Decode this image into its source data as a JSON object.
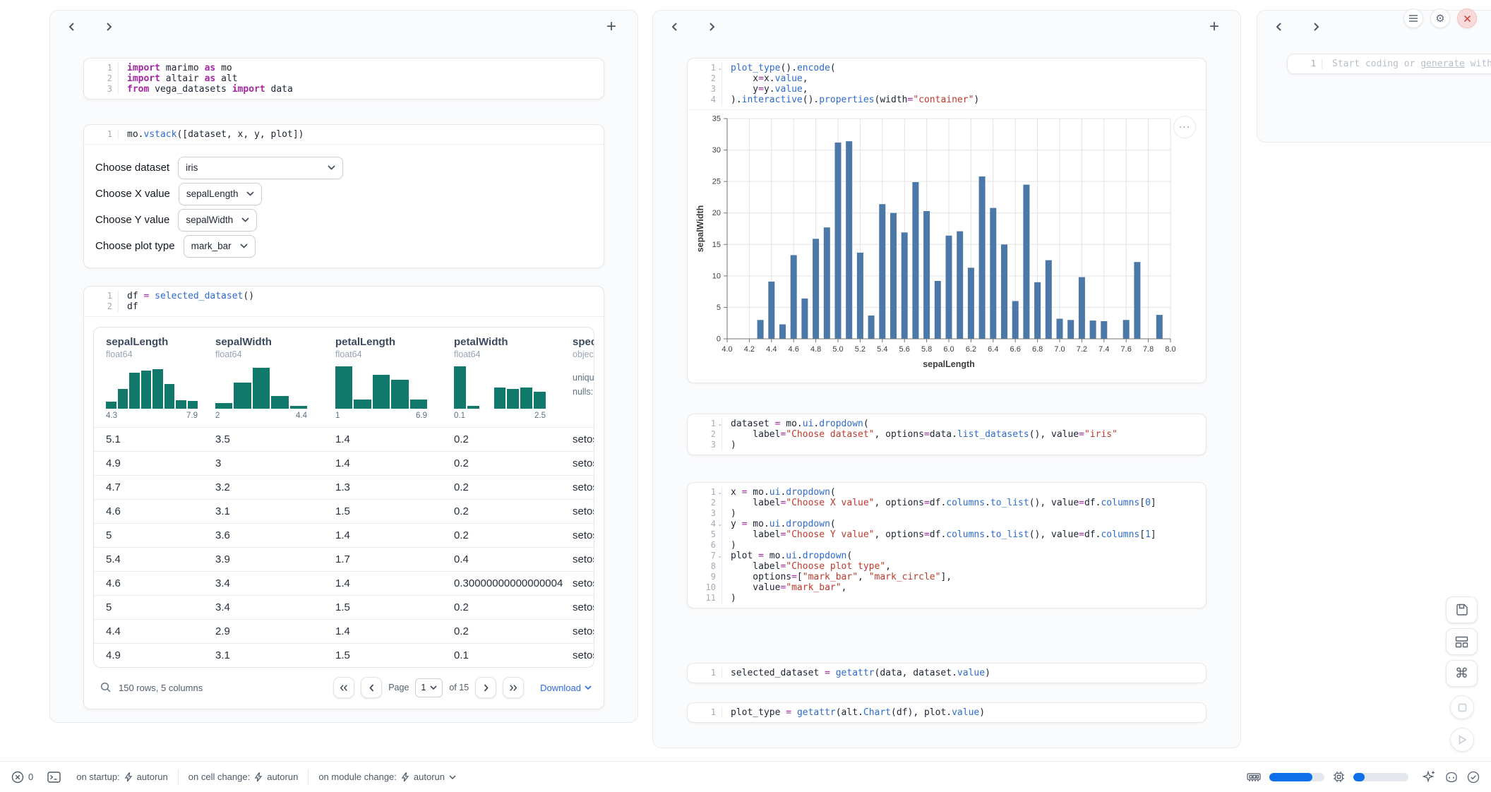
{
  "glyphs": {
    "plus": "+",
    "dots": "⋯",
    "command": "⌘",
    "gear": "⚙",
    "caret": "⌄"
  },
  "left_panel": {
    "cell_imports": {
      "lines": [
        {
          "n": "1",
          "segs": [
            [
              "kw",
              "import"
            ],
            [
              "pl",
              " marimo "
            ],
            [
              "kw",
              "as"
            ],
            [
              "pl",
              " mo"
            ]
          ]
        },
        {
          "n": "2",
          "segs": [
            [
              "kw",
              "import"
            ],
            [
              "pl",
              " altair "
            ],
            [
              "kw",
              "as"
            ],
            [
              "pl",
              " alt"
            ]
          ]
        },
        {
          "n": "3",
          "segs": [
            [
              "kw",
              "from"
            ],
            [
              "pl",
              " vega_datasets "
            ],
            [
              "kw",
              "import"
            ],
            [
              "pl",
              " data"
            ]
          ]
        }
      ]
    },
    "cell_vstack": {
      "lines": [
        {
          "n": "1",
          "segs": [
            [
              "pl",
              "mo."
            ],
            [
              "fn",
              "vstack"
            ],
            [
              "pl",
              "([dataset, x, y, plot])"
            ]
          ]
        }
      ],
      "form": [
        {
          "label": "Choose dataset",
          "value": "iris",
          "wide": true
        },
        {
          "label": "Choose X value",
          "value": "sepalLength"
        },
        {
          "label": "Choose Y value",
          "value": "sepalWidth"
        },
        {
          "label": "Choose plot type",
          "value": "mark_bar"
        }
      ]
    },
    "cell_df": {
      "lines": [
        {
          "n": "1",
          "segs": [
            [
              "pl",
              "df "
            ],
            [
              "op",
              "="
            ],
            [
              "pl",
              " "
            ],
            [
              "fn",
              "selected_dataset"
            ],
            [
              "pl",
              "()"
            ]
          ]
        },
        {
          "n": "2",
          "segs": [
            [
              "pl",
              "df"
            ]
          ]
        }
      ]
    },
    "table": {
      "columns": [
        {
          "name": "sepalLength",
          "type": "float64",
          "min": "4.3",
          "max": "7.9",
          "hist": [
            0.16,
            0.46,
            0.85,
            0.9,
            0.93,
            0.58,
            0.2,
            0.18
          ]
        },
        {
          "name": "sepalWidth",
          "type": "float64",
          "min": "2",
          "max": "4.4",
          "hist": [
            0.13,
            0.62,
            0.97,
            0.3,
            0.07
          ]
        },
        {
          "name": "petalLength",
          "type": "float64",
          "min": "1",
          "max": "6.9",
          "hist": [
            1.0,
            0.22,
            0.8,
            0.68,
            0.22
          ]
        },
        {
          "name": "petalWidth",
          "type": "float64",
          "min": "0.1",
          "max": "2.5",
          "hist": [
            1.0,
            0.07,
            0.0,
            0.5,
            0.47,
            0.5,
            0.4
          ]
        },
        {
          "name": "speci",
          "type": "objec",
          "stats": [
            "uniqu",
            "nulls:"
          ]
        }
      ],
      "rows": [
        [
          "5.1",
          "3.5",
          "1.4",
          "0.2",
          "setos"
        ],
        [
          "4.9",
          "3",
          "1.4",
          "0.2",
          "setos"
        ],
        [
          "4.7",
          "3.2",
          "1.3",
          "0.2",
          "setos"
        ],
        [
          "4.6",
          "3.1",
          "1.5",
          "0.2",
          "setos"
        ],
        [
          "5",
          "3.6",
          "1.4",
          "0.2",
          "setos"
        ],
        [
          "5.4",
          "3.9",
          "1.7",
          "0.4",
          "setos"
        ],
        [
          "4.6",
          "3.4",
          "1.4",
          "0.30000000000000004",
          "setos"
        ],
        [
          "5",
          "3.4",
          "1.5",
          "0.2",
          "setos"
        ],
        [
          "4.4",
          "2.9",
          "1.4",
          "0.2",
          "setos"
        ],
        [
          "4.9",
          "3.1",
          "1.5",
          "0.1",
          "setos"
        ]
      ],
      "footer": {
        "summary": "150 rows, 5 columns",
        "page_label": "Page",
        "page_value": "1",
        "of_label": "of 15",
        "download": "Download"
      }
    }
  },
  "middle_panel": {
    "cell_plot": {
      "lines": [
        {
          "n": "1",
          "fold": true,
          "segs": [
            [
              "fn",
              "plot_type"
            ],
            [
              "pl",
              "()."
            ],
            [
              "fn",
              "encode"
            ],
            [
              "pl",
              "("
            ]
          ]
        },
        {
          "n": "2",
          "segs": [
            [
              "pl",
              "    x"
            ],
            [
              "op",
              "="
            ],
            [
              "pl",
              "x."
            ],
            [
              "fn",
              "value"
            ],
            [
              "pl",
              ","
            ]
          ]
        },
        {
          "n": "3",
          "segs": [
            [
              "pl",
              "    y"
            ],
            [
              "op",
              "="
            ],
            [
              "pl",
              "y."
            ],
            [
              "fn",
              "value"
            ],
            [
              "pl",
              ","
            ]
          ]
        },
        {
          "n": "4",
          "segs": [
            [
              "pl",
              ")."
            ],
            [
              "fn",
              "interactive"
            ],
            [
              "pl",
              "()."
            ],
            [
              "fn",
              "properties"
            ],
            [
              "pl",
              "(width"
            ],
            [
              "op",
              "="
            ],
            [
              "str",
              "\"container\""
            ],
            [
              "pl",
              ")"
            ]
          ]
        }
      ]
    },
    "cell_dataset": {
      "lines": [
        {
          "n": "1",
          "fold": true,
          "segs": [
            [
              "pl",
              "dataset "
            ],
            [
              "op",
              "="
            ],
            [
              "pl",
              " mo."
            ],
            [
              "fn",
              "ui"
            ],
            [
              "pl",
              "."
            ],
            [
              "fn",
              "dropdown"
            ],
            [
              "pl",
              "("
            ]
          ]
        },
        {
          "n": "2",
          "segs": [
            [
              "pl",
              "    label"
            ],
            [
              "op",
              "="
            ],
            [
              "str",
              "\"Choose dataset\""
            ],
            [
              "pl",
              ", options"
            ],
            [
              "op",
              "="
            ],
            [
              "pl",
              "data."
            ],
            [
              "fn",
              "list_datasets"
            ],
            [
              "pl",
              "(), value"
            ],
            [
              "op",
              "="
            ],
            [
              "str",
              "\"iris\""
            ]
          ]
        },
        {
          "n": "3",
          "segs": [
            [
              "pl",
              ")"
            ]
          ]
        }
      ]
    },
    "cell_xyplot": {
      "lines": [
        {
          "n": "1",
          "fold": true,
          "segs": [
            [
              "pl",
              "x "
            ],
            [
              "op",
              "="
            ],
            [
              "pl",
              " mo."
            ],
            [
              "fn",
              "ui"
            ],
            [
              "pl",
              "."
            ],
            [
              "fn",
              "dropdown"
            ],
            [
              "pl",
              "("
            ]
          ]
        },
        {
          "n": "2",
          "segs": [
            [
              "pl",
              "    label"
            ],
            [
              "op",
              "="
            ],
            [
              "str",
              "\"Choose X value\""
            ],
            [
              "pl",
              ", options"
            ],
            [
              "op",
              "="
            ],
            [
              "pl",
              "df."
            ],
            [
              "fn",
              "columns"
            ],
            [
              "pl",
              "."
            ],
            [
              "fn",
              "to_list"
            ],
            [
              "pl",
              "(), value"
            ],
            [
              "op",
              "="
            ],
            [
              "pl",
              "df."
            ],
            [
              "fn",
              "columns"
            ],
            [
              "pl",
              "["
            ],
            [
              "num",
              "0"
            ],
            [
              "pl",
              "]"
            ]
          ]
        },
        {
          "n": "3",
          "segs": [
            [
              "pl",
              ")"
            ]
          ]
        },
        {
          "n": "4",
          "fold": true,
          "segs": [
            [
              "pl",
              "y "
            ],
            [
              "op",
              "="
            ],
            [
              "pl",
              " mo."
            ],
            [
              "fn",
              "ui"
            ],
            [
              "pl",
              "."
            ],
            [
              "fn",
              "dropdown"
            ],
            [
              "pl",
              "("
            ]
          ]
        },
        {
          "n": "5",
          "segs": [
            [
              "pl",
              "    label"
            ],
            [
              "op",
              "="
            ],
            [
              "str",
              "\"Choose Y value\""
            ],
            [
              "pl",
              ", options"
            ],
            [
              "op",
              "="
            ],
            [
              "pl",
              "df."
            ],
            [
              "fn",
              "columns"
            ],
            [
              "pl",
              "."
            ],
            [
              "fn",
              "to_list"
            ],
            [
              "pl",
              "(), value"
            ],
            [
              "op",
              "="
            ],
            [
              "pl",
              "df."
            ],
            [
              "fn",
              "columns"
            ],
            [
              "pl",
              "["
            ],
            [
              "num",
              "1"
            ],
            [
              "pl",
              "]"
            ]
          ]
        },
        {
          "n": "6",
          "segs": [
            [
              "pl",
              ")"
            ]
          ]
        },
        {
          "n": "7",
          "fold": true,
          "segs": [
            [
              "pl",
              "plot "
            ],
            [
              "op",
              "="
            ],
            [
              "pl",
              " mo."
            ],
            [
              "fn",
              "ui"
            ],
            [
              "pl",
              "."
            ],
            [
              "fn",
              "dropdown"
            ],
            [
              "pl",
              "("
            ]
          ]
        },
        {
          "n": "8",
          "segs": [
            [
              "pl",
              "    label"
            ],
            [
              "op",
              "="
            ],
            [
              "str",
              "\"Choose plot type\""
            ],
            [
              "pl",
              ","
            ]
          ]
        },
        {
          "n": "9",
          "segs": [
            [
              "pl",
              "    options"
            ],
            [
              "op",
              "="
            ],
            [
              "pl",
              "["
            ],
            [
              "str",
              "\"mark_bar\""
            ],
            [
              "pl",
              ", "
            ],
            [
              "str",
              "\"mark_circle\""
            ],
            [
              "pl",
              "],"
            ]
          ]
        },
        {
          "n": "10",
          "segs": [
            [
              "pl",
              "    value"
            ],
            [
              "op",
              "="
            ],
            [
              "str",
              "\"mark_bar\""
            ],
            [
              "pl",
              ","
            ]
          ]
        },
        {
          "n": "11",
          "segs": [
            [
              "pl",
              ")"
            ]
          ]
        }
      ]
    },
    "cell_selected": {
      "lines": [
        {
          "n": "1",
          "segs": [
            [
              "pl",
              "selected_dataset "
            ],
            [
              "op",
              "="
            ],
            [
              "pl",
              " "
            ],
            [
              "fn",
              "getattr"
            ],
            [
              "pl",
              "(data, dataset."
            ],
            [
              "fn",
              "value"
            ],
            [
              "pl",
              ")"
            ]
          ]
        }
      ]
    },
    "cell_plot_type": {
      "lines": [
        {
          "n": "1",
          "segs": [
            [
              "pl",
              "plot_type "
            ],
            [
              "op",
              "="
            ],
            [
              "pl",
              " "
            ],
            [
              "fn",
              "getattr"
            ],
            [
              "pl",
              "(alt."
            ],
            [
              "fn",
              "Chart"
            ],
            [
              "pl",
              "(df), plot."
            ],
            [
              "fn",
              "value"
            ],
            [
              "pl",
              ")"
            ]
          ]
        }
      ]
    }
  },
  "chart_data": {
    "type": "bar",
    "x": [
      4.3,
      4.4,
      4.5,
      4.6,
      4.7,
      4.8,
      4.9,
      5.0,
      5.1,
      5.2,
      5.3,
      5.4,
      5.5,
      5.6,
      5.7,
      5.8,
      5.9,
      6.0,
      6.1,
      6.2,
      6.3,
      6.4,
      6.5,
      6.6,
      6.7,
      6.8,
      6.9,
      7.0,
      7.1,
      7.2,
      7.3,
      7.4,
      7.6,
      7.7,
      7.9
    ],
    "values": [
      3.0,
      9.1,
      2.3,
      13.3,
      6.4,
      15.9,
      17.7,
      31.2,
      31.4,
      13.7,
      3.7,
      21.4,
      20.0,
      16.9,
      24.9,
      20.3,
      9.2,
      16.4,
      17.1,
      11.3,
      25.8,
      20.8,
      15.0,
      6.0,
      24.5,
      9.0,
      12.5,
      3.2,
      3.0,
      9.8,
      2.9,
      2.8,
      3.0,
      12.2,
      3.8
    ],
    "title": "",
    "xlabel": "sepalLength",
    "ylabel": "sepalWidth",
    "xlim": [
      4.0,
      8.0
    ],
    "ylim": [
      0,
      35
    ],
    "xtick_step": 0.2,
    "ytick_step": 5,
    "grid": true,
    "bar_color": "#4c78a8"
  },
  "right_panel": {
    "cell": {
      "n": "1",
      "placeholder_prefix": "Start coding or ",
      "placeholder_link": "generate",
      "placeholder_suffix": " with"
    }
  },
  "status_bar": {
    "error_count": "0",
    "run_items": [
      {
        "label": "on startup:",
        "value": "autorun",
        "caret": false
      },
      {
        "label": "on cell change:",
        "value": "autorun",
        "caret": false
      },
      {
        "label": "on module change:",
        "value": "autorun",
        "caret": true
      }
    ],
    "resources": {
      "ram_percent": 78,
      "cpu_percent": 21
    }
  }
}
